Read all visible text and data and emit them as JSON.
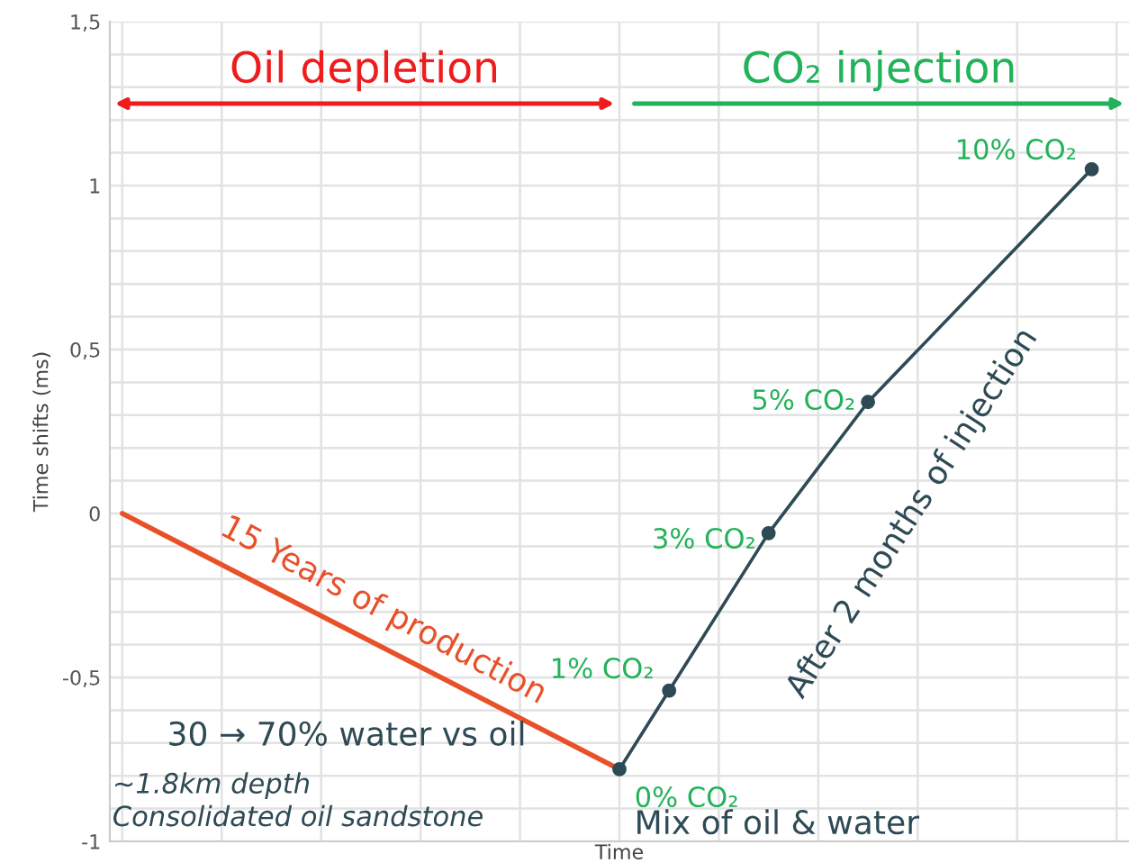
{
  "chart_data": {
    "type": "line",
    "xlabel": "Time",
    "ylabel": "Time shifts (ms)",
    "categories": [
      null,
      null,
      null,
      null,
      null,
      null,
      null,
      null,
      null,
      null,
      null,
      null,
      null,
      null,
      null,
      null,
      null,
      null,
      null,
      null,
      null,
      null,
      null,
      null,
      null,
      null,
      null,
      null,
      null,
      null,
      null,
      null,
      null,
      null,
      null,
      null,
      null,
      null,
      null,
      null,
      null
    ],
    "ylim": [
      -1,
      1.5
    ],
    "yticks": [
      {
        "value": -1,
        "label": "-1"
      },
      {
        "value": -0.9,
        "label": null
      },
      {
        "value": -0.8,
        "label": null
      },
      {
        "value": -0.7,
        "label": null
      },
      {
        "value": -0.6,
        "label": null
      },
      {
        "value": -0.5,
        "label": "-0,5"
      },
      {
        "value": -0.4,
        "label": null
      },
      {
        "value": -0.3,
        "label": null
      },
      {
        "value": -0.2,
        "label": null
      },
      {
        "value": -0.1,
        "label": null
      },
      {
        "value": 0,
        "label": "0"
      },
      {
        "value": 0.1,
        "label": null
      },
      {
        "value": 0.2,
        "label": null
      },
      {
        "value": 0.3,
        "label": null
      },
      {
        "value": 0.4,
        "label": null
      },
      {
        "value": 0.5,
        "label": "0,5"
      },
      {
        "value": 0.6,
        "label": null
      },
      {
        "value": 0.7,
        "label": null
      },
      {
        "value": 0.8,
        "label": null
      },
      {
        "value": 0.9,
        "label": null
      },
      {
        "value": 1,
        "label": "1"
      },
      {
        "value": 1.1,
        "label": null
      },
      {
        "value": 1.2,
        "label": null
      },
      {
        "value": 1.3,
        "label": null
      },
      {
        "value": 1.4,
        "label": null
      },
      {
        "value": 1.5,
        "label": "1,5"
      }
    ],
    "tick_labels": "y",
    "grid": true,
    "legend": false,
    "line_style": "solid",
    "series": [
      {
        "color": "#e8502a",
        "marker": "none",
        "values": [
          0,
          null,
          null,
          null,
          null,
          null,
          null,
          null,
          null,
          null,
          null,
          null,
          null,
          null,
          null,
          null,
          null,
          null,
          null,
          null,
          -0.78,
          null,
          null,
          null,
          null,
          null,
          null,
          null,
          null,
          null,
          null,
          null,
          null,
          null,
          null,
          null,
          null,
          null,
          null,
          null,
          null
        ]
      },
      {
        "color": "#2e4a55",
        "marker": "circle",
        "values": [
          null,
          null,
          null,
          null,
          null,
          null,
          null,
          null,
          null,
          null,
          null,
          null,
          null,
          null,
          null,
          null,
          null,
          null,
          null,
          null,
          -0.78,
          null,
          -0.54,
          null,
          null,
          null,
          -0.06,
          null,
          null,
          null,
          0.34,
          null,
          null,
          null,
          null,
          null,
          null,
          null,
          null,
          1.05,
          null
        ]
      }
    ],
    "annotations": [
      "Oil depletion",
      "CO₂ injection",
      "15 Years of production",
      "After 2 months of injection",
      "30 → 70% water vs oil",
      "~1.8km depth",
      "Consolidated oil sandstone",
      "Mix of oil & water",
      "0% CO₂",
      "1% CO₂",
      "3% CO₂",
      "5% CO₂",
      "10% CO₂"
    ]
  }
}
